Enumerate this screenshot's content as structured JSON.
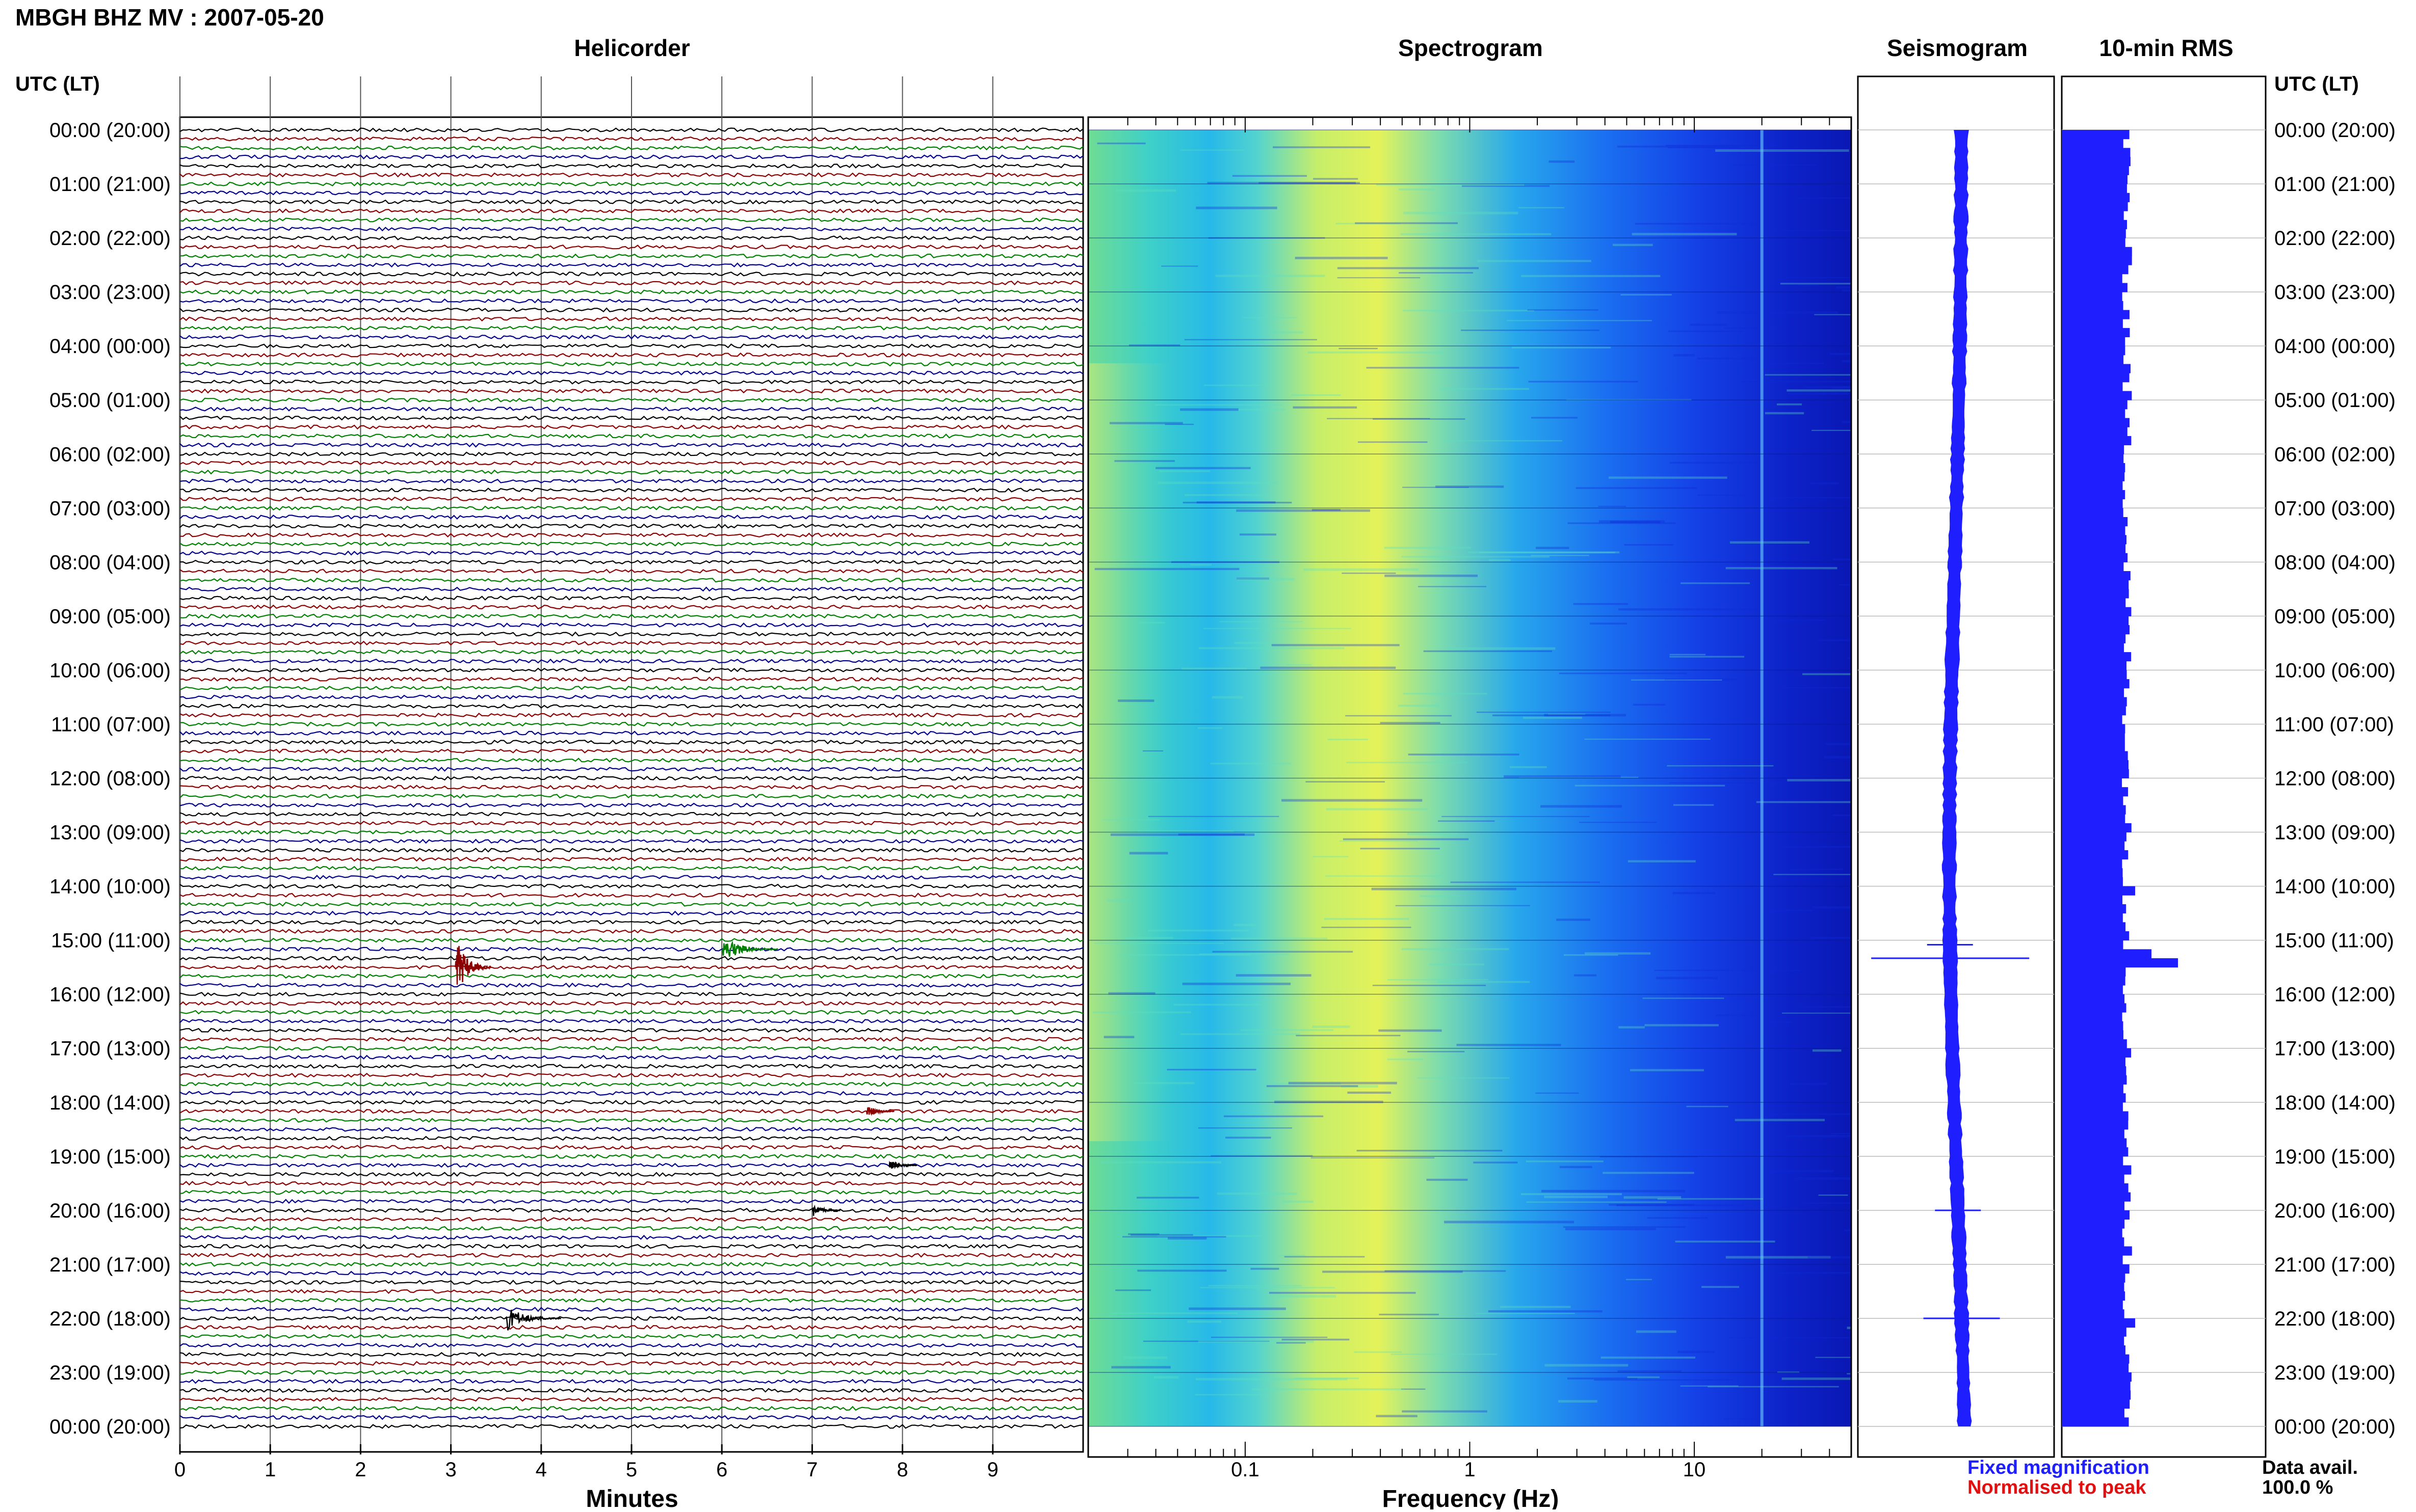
{
  "title": "MBGH BHZ MV : 2007-05-20",
  "panels": {
    "helicorder": "Helicorder",
    "spectrogram": "Spectrogram",
    "seismogram": "Seismogram",
    "rms": "10-min RMS"
  },
  "time_axis_header": "UTC (LT)",
  "time_labels": [
    "00:00 (20:00)",
    "01:00 (21:00)",
    "02:00 (22:00)",
    "03:00 (23:00)",
    "04:00 (00:00)",
    "05:00 (01:00)",
    "06:00 (02:00)",
    "07:00 (03:00)",
    "08:00 (04:00)",
    "09:00 (05:00)",
    "10:00 (06:00)",
    "11:00 (07:00)",
    "12:00 (08:00)",
    "13:00 (09:00)",
    "14:00 (10:00)",
    "15:00 (11:00)",
    "16:00 (12:00)",
    "17:00 (13:00)",
    "18:00 (14:00)",
    "19:00 (15:00)",
    "20:00 (16:00)",
    "21:00 (17:00)",
    "22:00 (18:00)",
    "23:00 (19:00)",
    "00:00 (20:00)"
  ],
  "legend": {
    "fixed": "Fixed magnification",
    "normalised": "Normalised to peak"
  },
  "availability": {
    "label": "Data avail.",
    "value": "100.0 %"
  },
  "colors": {
    "trace_black": "#000000",
    "trace_red": "#8b0000",
    "trace_green": "#008000",
    "trace_blue": "#00008b",
    "seismogram": "#1e1eff",
    "rms": "#1e1eff"
  },
  "chart_data": [
    {
      "type": "line",
      "name": "helicorder",
      "xlabel": "Minutes",
      "x_ticks": [
        0,
        1,
        2,
        3,
        4,
        5,
        6,
        7,
        8,
        9
      ],
      "xlim": [
        0,
        10
      ],
      "rows_per_hour": 6,
      "row_colors": [
        "black",
        "red",
        "green",
        "blue"
      ],
      "events": [
        {
          "time_utc": "15:30",
          "minute": 3.05,
          "color": "red",
          "amplitude": "large"
        },
        {
          "time_utc": "15:10",
          "minute": 6.0,
          "color": "green",
          "amplitude": "medium"
        },
        {
          "time_utc": "18:10",
          "minute": 7.6,
          "color": "red",
          "amplitude": "small"
        },
        {
          "time_utc": "19:10",
          "minute": 7.85,
          "color": "black",
          "amplitude": "small"
        },
        {
          "time_utc": "20:00",
          "minute": 7.0,
          "color": "black",
          "amplitude": "small"
        },
        {
          "time_utc": "22:00",
          "minute": 3.6,
          "color": "black",
          "amplitude": "medium"
        }
      ]
    },
    {
      "type": "heatmap",
      "name": "spectrogram",
      "xlabel": "Frequency (Hz)",
      "x_scale": "log",
      "xlim": [
        0.02,
        50
      ],
      "x_ticks": [
        0.1,
        1,
        10
      ],
      "peak_frequency_band_hz": [
        0.15,
        0.4
      ],
      "colormap": "blue-cyan-yellow"
    },
    {
      "type": "line",
      "name": "seismogram",
      "spikes": [
        {
          "time_utc": "15:20",
          "extent": "large"
        },
        {
          "time_utc": "15:05",
          "extent": "small"
        },
        {
          "time_utc": "20:00",
          "extent": "small"
        },
        {
          "time_utc": "22:00",
          "extent": "medium"
        }
      ]
    },
    {
      "type": "bar",
      "name": "10-min RMS",
      "orientation": "horizontal",
      "interval_minutes": 10,
      "baseline_relative": 0.32,
      "peaks": [
        {
          "time_utc": "15:20",
          "relative": 0.57
        },
        {
          "time_utc": "15:10",
          "relative": 0.44
        },
        {
          "time_utc": "14:00",
          "relative": 0.36
        },
        {
          "time_utc": "22:00",
          "relative": 0.36
        }
      ]
    }
  ]
}
